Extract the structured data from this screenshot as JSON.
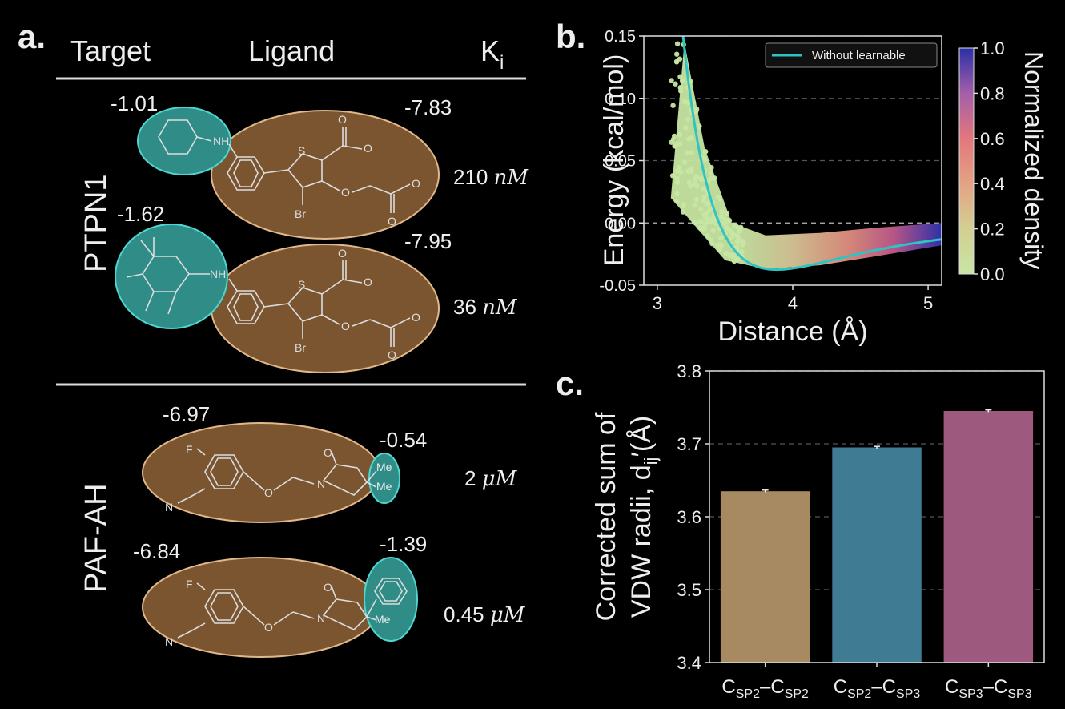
{
  "colors": {
    "background": "#000000",
    "target_fill": "#2f8c87",
    "target_stroke": "#4fd6d0",
    "ligand_fill": "#7a5530",
    "ligand_stroke": "#e0b88a",
    "curve": "#2ec4c4",
    "bar_sp2_sp2": "#a78a62",
    "bar_sp2_sp3": "#3f7b93",
    "bar_sp3_sp3": "#9e5a7e"
  },
  "panel_a": {
    "label": "a.",
    "headers": {
      "target": "Target",
      "ligand": "Ligand",
      "ki": "K",
      "ki_sub": "i"
    },
    "groups": [
      {
        "name": "PTPN1",
        "entries": [
          {
            "target_value": "-1.01",
            "ligand_value": "-7.83",
            "ki_num": "210",
            "ki_unit": "nM",
            "atoms": {
              "nh": "NH",
              "s": "S",
              "br": "Br",
              "o": "O",
              "om1": "O",
              "om2": "O"
            }
          },
          {
            "target_value": "-1.62",
            "ligand_value": "-7.95",
            "ki_num": "36",
            "ki_unit": "nM",
            "atoms": {
              "nh": "NH",
              "s": "S",
              "br": "Br",
              "o": "O",
              "om1": "O",
              "om2": "O"
            }
          }
        ]
      },
      {
        "name": "PAF-AH",
        "entries": [
          {
            "ligand_value": "-6.97",
            "target_value": "-0.54",
            "ki_num": "2",
            "ki_unit": "μM",
            "atoms": {
              "f": "F",
              "n": "N",
              "o": "O",
              "n2": "N",
              "o2": "O",
              "me1": "Me",
              "me2": "Me"
            }
          },
          {
            "ligand_value": "-6.84",
            "target_value": "-1.39",
            "ki_num": "0.45",
            "ki_unit": "μM",
            "atoms": {
              "f": "F",
              "n": "N",
              "o": "O",
              "n2": "N",
              "o2": "O",
              "me": "Me"
            }
          }
        ]
      }
    ]
  },
  "chart_data": [
    {
      "panel": "b.",
      "type": "scatter",
      "xlabel": "Distance (Å)",
      "ylabel": "Energy (kcal/mol)",
      "xlim": [
        2.9,
        5.1
      ],
      "ylim": [
        -0.05,
        0.15
      ],
      "xticks": [
        "3",
        "4",
        "5"
      ],
      "yticks": [
        "-0.05",
        "0.00",
        "0.05",
        "0.10",
        "0.15"
      ],
      "legend": {
        "label": "Without learnable",
        "position": "top-right"
      },
      "colorbar": {
        "label": "Normalized density",
        "range": [
          0.0,
          1.0
        ],
        "ticks": [
          "0.0",
          "0.2",
          "0.4",
          "0.6",
          "0.8",
          "1.0"
        ]
      },
      "curve": {
        "name": "Without learnable",
        "epsilon": 0.0375,
        "r_min": 3.88
      },
      "scatter_band": {
        "lower_edge": [
          [
            3.1,
            0.02
          ],
          [
            3.3,
            -0.005
          ],
          [
            3.5,
            -0.03
          ],
          [
            3.8,
            -0.037
          ],
          [
            4.2,
            -0.034
          ],
          [
            4.6,
            -0.027
          ],
          [
            5.1,
            -0.018
          ]
        ],
        "upper_edge": [
          [
            3.2,
            0.145
          ],
          [
            3.35,
            0.06
          ],
          [
            3.55,
            0.0
          ],
          [
            3.8,
            -0.01
          ],
          [
            4.2,
            -0.008
          ],
          [
            4.6,
            -0.004
          ],
          [
            5.1,
            0.0
          ]
        ]
      }
    },
    {
      "panel": "c.",
      "type": "bar",
      "ylabel_line1": "Corrected sum of",
      "ylabel_line2": "VDW radii, d",
      "ylabel_sub": "ij",
      "ylabel_unit": "(Å)",
      "ylim": [
        3.4,
        3.8
      ],
      "yticks": [
        "3.4",
        "3.5",
        "3.6",
        "3.7",
        "3.8"
      ],
      "categories": [
        {
          "a": "C",
          "a_sub": "SP2",
          "b": "C",
          "b_sub": "SP2"
        },
        {
          "a": "C",
          "a_sub": "SP2",
          "b": "C",
          "b_sub": "SP3"
        },
        {
          "a": "C",
          "a_sub": "SP3",
          "b": "C",
          "b_sub": "SP3"
        }
      ],
      "values": [
        3.635,
        3.695,
        3.745
      ],
      "errors": [
        0.0015,
        0.0015,
        0.0015
      ]
    }
  ]
}
